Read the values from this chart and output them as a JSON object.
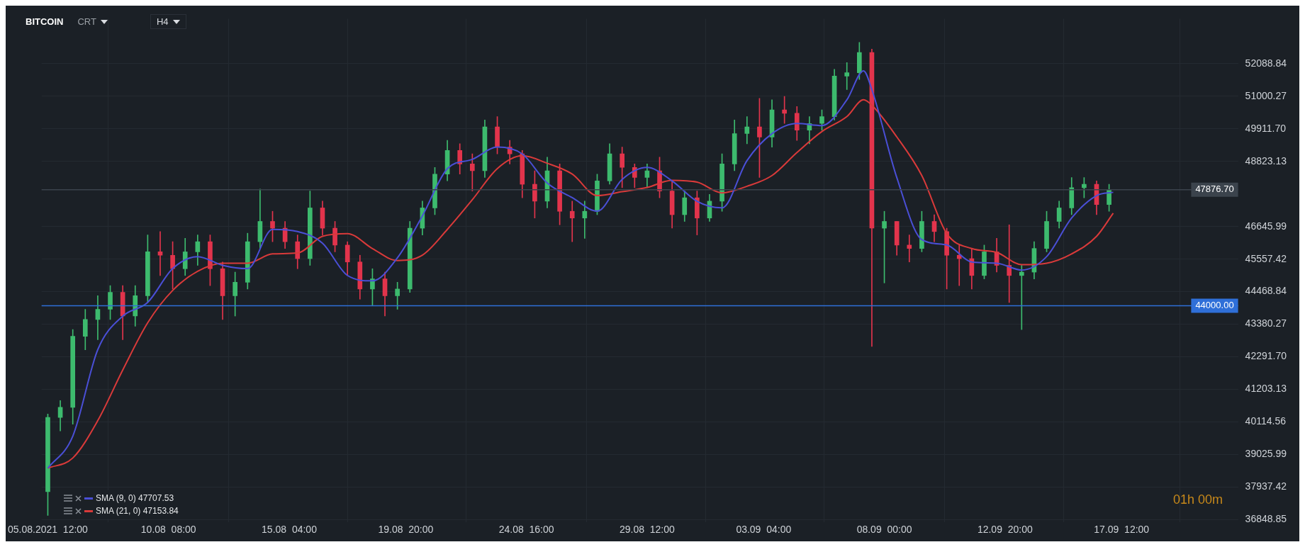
{
  "chart_data": {
    "type": "candlestick",
    "title": "BITCOIN",
    "x": [
      "2021-08-05T12:00",
      "2021-08-06T00:00",
      "2021-08-06T12:00",
      "2021-08-07T00:00",
      "2021-08-07T12:00",
      "2021-08-08T00:00",
      "2021-08-08T12:00",
      "2021-08-09T00:00",
      "2021-08-09T12:00",
      "2021-08-10T00:00",
      "2021-08-10T12:00",
      "2021-08-11T00:00",
      "2021-08-11T12:00",
      "2021-08-12T00:00",
      "2021-08-12T12:00",
      "2021-08-13T00:00",
      "2021-08-13T12:00",
      "2021-08-14T00:00",
      "2021-08-14T12:00",
      "2021-08-15T00:00",
      "2021-08-15T12:00",
      "2021-08-16T00:00",
      "2021-08-16T12:00",
      "2021-08-17T00:00",
      "2021-08-17T12:00",
      "2021-08-18T00:00",
      "2021-08-18T12:00",
      "2021-08-19T00:00",
      "2021-08-19T12:00",
      "2021-08-20T00:00",
      "2021-08-20T12:00",
      "2021-08-21T00:00",
      "2021-08-21T12:00",
      "2021-08-22T00:00",
      "2021-08-22T12:00",
      "2021-08-23T00:00",
      "2021-08-23T12:00",
      "2021-08-24T00:00",
      "2021-08-24T12:00",
      "2021-08-25T00:00",
      "2021-08-25T12:00",
      "2021-08-26T00:00",
      "2021-08-26T12:00",
      "2021-08-27T00:00",
      "2021-08-27T12:00",
      "2021-08-28T00:00",
      "2021-08-28T12:00",
      "2021-08-29T00:00",
      "2021-08-29T12:00",
      "2021-08-30T00:00",
      "2021-08-30T12:00",
      "2021-08-31T00:00",
      "2021-08-31T12:00",
      "2021-09-01T00:00",
      "2021-09-01T12:00",
      "2021-09-02T00:00",
      "2021-09-02T12:00",
      "2021-09-03T00:00",
      "2021-09-03T12:00",
      "2021-09-04T00:00",
      "2021-09-04T12:00",
      "2021-09-05T00:00",
      "2021-09-05T12:00",
      "2021-09-06T00:00",
      "2021-09-06T12:00",
      "2021-09-07T00:00",
      "2021-09-07T12:00",
      "2021-09-08T00:00",
      "2021-09-08T12:00",
      "2021-09-09T00:00",
      "2021-09-09T12:00",
      "2021-09-10T00:00",
      "2021-09-10T12:00",
      "2021-09-11T00:00",
      "2021-09-11T12:00",
      "2021-09-12T00:00",
      "2021-09-12T12:00",
      "2021-09-13T00:00",
      "2021-09-13T12:00",
      "2021-09-14T00:00",
      "2021-09-14T12:00",
      "2021-09-15T00:00",
      "2021-09-15T12:00",
      "2021-09-16T00:00",
      "2021-09-16T12:00",
      "2021-09-17T00:00"
    ],
    "ohlc": [
      [
        37782,
        40380,
        36992,
        40266
      ],
      [
        40266,
        40832,
        39814,
        40605
      ],
      [
        40605,
        43202,
        40040,
        42976
      ],
      [
        42976,
        43880,
        42525,
        43541
      ],
      [
        43541,
        44331,
        42864,
        43880
      ],
      [
        43880,
        44670,
        43541,
        44444
      ],
      [
        44444,
        44670,
        42864,
        43654
      ],
      [
        43654,
        44670,
        43315,
        44331
      ],
      [
        44331,
        46364,
        44106,
        45799
      ],
      [
        45799,
        46477,
        45009,
        45686
      ],
      [
        45686,
        46138,
        44557,
        45235
      ],
      [
        45235,
        46251,
        45009,
        45799
      ],
      [
        45799,
        46364,
        45348,
        46138
      ],
      [
        46138,
        46364,
        44670,
        45235
      ],
      [
        45235,
        45461,
        43541,
        44331
      ],
      [
        44331,
        45122,
        43654,
        44783
      ],
      [
        44783,
        46421,
        44557,
        46138
      ],
      [
        46138,
        47900,
        45912,
        46816
      ],
      [
        46816,
        47154,
        46138,
        46590
      ],
      [
        46590,
        46816,
        45912,
        46138
      ],
      [
        46138,
        46364,
        45235,
        45573
      ],
      [
        45573,
        47832,
        45348,
        47267
      ],
      [
        47267,
        47493,
        46364,
        46590
      ],
      [
        46590,
        46816,
        45799,
        46025
      ],
      [
        46025,
        46138,
        45009,
        45461
      ],
      [
        45461,
        45686,
        44218,
        44557
      ],
      [
        44557,
        45235,
        43993,
        44896
      ],
      [
        44896,
        45122,
        43654,
        44331
      ],
      [
        44331,
        44783,
        43880,
        44557
      ],
      [
        44557,
        46816,
        44444,
        46590
      ],
      [
        46590,
        47493,
        46364,
        47267
      ],
      [
        47267,
        48622,
        47041,
        48396
      ],
      [
        48396,
        49525,
        48171,
        49187
      ],
      [
        49187,
        49413,
        48396,
        48735
      ],
      [
        48735,
        49074,
        47832,
        48509
      ],
      [
        48509,
        50203,
        48284,
        49977
      ],
      [
        49977,
        50316,
        49074,
        49300
      ],
      [
        49300,
        49525,
        48735,
        49074
      ],
      [
        49074,
        49187,
        47606,
        48058
      ],
      [
        48058,
        48509,
        46929,
        47493
      ],
      [
        47493,
        48961,
        47267,
        48509
      ],
      [
        48509,
        48735,
        46703,
        47154
      ],
      [
        47154,
        47493,
        46138,
        46929
      ],
      [
        46929,
        47493,
        46251,
        47154
      ],
      [
        47154,
        48396,
        47041,
        48171
      ],
      [
        48171,
        49413,
        48058,
        49074
      ],
      [
        49074,
        49300,
        47945,
        48622
      ],
      [
        48622,
        48735,
        47945,
        48284
      ],
      [
        48284,
        48735,
        47945,
        48509
      ],
      [
        48509,
        48961,
        47606,
        47832
      ],
      [
        47832,
        48171,
        46590,
        47041
      ],
      [
        47041,
        47832,
        46816,
        47606
      ],
      [
        47606,
        47832,
        46364,
        46929
      ],
      [
        46929,
        47719,
        46816,
        47493
      ],
      [
        47493,
        49074,
        47154,
        48735
      ],
      [
        48735,
        50203,
        48509,
        49751
      ],
      [
        49751,
        50316,
        49413,
        49977
      ],
      [
        49977,
        50926,
        48284,
        49638
      ],
      [
        49638,
        50880,
        49300,
        50542
      ],
      [
        50542,
        50993,
        50090,
        50429
      ],
      [
        50429,
        50654,
        49525,
        49864
      ],
      [
        49864,
        50316,
        49413,
        50090
      ],
      [
        50090,
        50542,
        49864,
        50316
      ],
      [
        50316,
        51897,
        50203,
        51671
      ],
      [
        51671,
        52123,
        51219,
        51784
      ],
      [
        51784,
        52800,
        51558,
        52461
      ],
      [
        52461,
        52574,
        42638,
        46590
      ],
      [
        46590,
        47154,
        44760,
        46816
      ],
      [
        46816,
        46816,
        45686,
        46025
      ],
      [
        46025,
        46364,
        45461,
        45912
      ],
      [
        45912,
        47154,
        45799,
        46816
      ],
      [
        46816,
        47041,
        46138,
        46477
      ],
      [
        46477,
        46590,
        44557,
        45686
      ],
      [
        45686,
        46025,
        44670,
        45573
      ],
      [
        45573,
        45912,
        44557,
        45009
      ],
      [
        45009,
        46025,
        44896,
        45799
      ],
      [
        45799,
        46251,
        45122,
        45348
      ],
      [
        45348,
        46703,
        44106,
        45009
      ],
      [
        45009,
        45348,
        43202,
        45122
      ],
      [
        45122,
        46138,
        44896,
        45912
      ],
      [
        45912,
        47154,
        45799,
        46816
      ],
      [
        46816,
        47493,
        46590,
        47267
      ],
      [
        47267,
        48284,
        47041,
        47945
      ],
      [
        47945,
        48284,
        47606,
        48058
      ],
      [
        48058,
        48171,
        47041,
        47380
      ],
      [
        47380,
        48058,
        47154,
        47876.7
      ]
    ],
    "colors": [
      "#3dbb6e",
      "#3dbb6e",
      "#3dbb6e",
      "#3dbb6e",
      "#3dbb6e",
      "#3dbb6e",
      "#e2344c",
      "#3dbb6e",
      "#3dbb6e",
      "#e2344c",
      "#e2344c",
      "#3dbb6e",
      "#3dbb6e",
      "#e2344c",
      "#e2344c",
      "#3dbb6e",
      "#3dbb6e",
      "#3dbb6e",
      "#e2344c",
      "#e2344c",
      "#e2344c",
      "#3dbb6e",
      "#e2344c",
      "#e2344c",
      "#e2344c",
      "#e2344c",
      "#3dbb6e",
      "#e2344c",
      "#3dbb6e",
      "#3dbb6e",
      "#3dbb6e",
      "#3dbb6e",
      "#3dbb6e",
      "#e2344c",
      "#e2344c",
      "#3dbb6e",
      "#e2344c",
      "#e2344c",
      "#e2344c",
      "#e2344c",
      "#3dbb6e",
      "#e2344c",
      "#e2344c",
      "#3dbb6e",
      "#3dbb6e",
      "#3dbb6e",
      "#e2344c",
      "#e2344c",
      "#3dbb6e",
      "#e2344c",
      "#e2344c",
      "#3dbb6e",
      "#e2344c",
      "#3dbb6e",
      "#3dbb6e",
      "#3dbb6e",
      "#3dbb6e",
      "#e2344c",
      "#3dbb6e",
      "#e2344c",
      "#e2344c",
      "#3dbb6e",
      "#3dbb6e",
      "#3dbb6e",
      "#3dbb6e",
      "#3dbb6e",
      "#e2344c",
      "#3dbb6e",
      "#e2344c",
      "#e2344c",
      "#3dbb6e",
      "#e2344c",
      "#e2344c",
      "#e2344c",
      "#e2344c",
      "#3dbb6e",
      "#e2344c",
      "#e2344c",
      "#3dbb6e",
      "#3dbb6e",
      "#3dbb6e",
      "#3dbb6e",
      "#3dbb6e",
      "#3dbb6e",
      "#e2344c",
      "#3dbb6e"
    ],
    "series": [
      {
        "type": "line",
        "name": "SMA (9, 0) 47707.53",
        "color": "#4a4fd6",
        "x": [
          "2021-08-05T12:00",
          "2021-08-06T12:00",
          "2021-08-07T12:00",
          "2021-08-08T12:00",
          "2021-08-09T12:00",
          "2021-08-10T12:00",
          "2021-08-11T12:00",
          "2021-08-12T12:00",
          "2021-08-13T12:00",
          "2021-08-14T12:00",
          "2021-08-15T12:00",
          "2021-08-16T12:00",
          "2021-08-17T12:00",
          "2021-08-18T12:00",
          "2021-08-19T12:00",
          "2021-08-20T12:00",
          "2021-08-21T12:00",
          "2021-08-22T12:00",
          "2021-08-23T12:00",
          "2021-08-24T12:00",
          "2021-08-25T12:00",
          "2021-08-26T12:00",
          "2021-08-27T12:00",
          "2021-08-28T12:00",
          "2021-08-29T12:00",
          "2021-08-30T12:00",
          "2021-08-31T12:00",
          "2021-09-01T12:00",
          "2021-09-02T12:00",
          "2021-09-03T12:00",
          "2021-09-04T12:00",
          "2021-09-05T12:00",
          "2021-09-06T12:00",
          "2021-09-07T04:00",
          "2021-09-07T12:00",
          "2021-09-08T12:00",
          "2021-09-09T12:00",
          "2021-09-10T12:00",
          "2021-09-11T12:00",
          "2021-09-12T12:00",
          "2021-09-13T12:00",
          "2021-09-14T12:00",
          "2021-09-15T12:00",
          "2021-09-16T12:00",
          "2021-09-17T04:00"
        ],
        "values": [
          38570,
          39640,
          42530,
          43650,
          44110,
          45240,
          45640,
          45350,
          45240,
          46550,
          46480,
          46090,
          45010,
          44830,
          45600,
          47000,
          48580,
          48890,
          49300,
          49070,
          48100,
          47610,
          47160,
          48220,
          48620,
          48170,
          47490,
          47270,
          48850,
          49750,
          50090,
          50020,
          50880,
          51850,
          51220,
          48280,
          46210,
          46030,
          45460,
          45420,
          45190,
          45640,
          46930,
          47680,
          47790
        ]
      },
      {
        "type": "line",
        "name": "SMA (21, 0) 47153.84",
        "color": "#d93a3a",
        "x": [
          "2021-08-05T12:00",
          "2021-08-06T12:00",
          "2021-08-07T12:00",
          "2021-08-08T12:00",
          "2021-08-09T12:00",
          "2021-08-10T12:00",
          "2021-08-11T12:00",
          "2021-08-12T12:00",
          "2021-08-13T12:00",
          "2021-08-14T12:00",
          "2021-08-15T12:00",
          "2021-08-16T12:00",
          "2021-08-17T12:00",
          "2021-08-18T12:00",
          "2021-08-19T12:00",
          "2021-08-20T12:00",
          "2021-08-21T12:00",
          "2021-08-22T12:00",
          "2021-08-23T12:00",
          "2021-08-24T12:00",
          "2021-08-25T12:00",
          "2021-08-26T12:00",
          "2021-08-27T12:00",
          "2021-08-28T12:00",
          "2021-08-29T12:00",
          "2021-08-30T12:00",
          "2021-08-31T12:00",
          "2021-09-01T12:00",
          "2021-09-02T12:00",
          "2021-09-03T12:00",
          "2021-09-04T12:00",
          "2021-09-05T12:00",
          "2021-09-06T12:00",
          "2021-09-07T04:00",
          "2021-09-07T12:00",
          "2021-09-08T12:00",
          "2021-09-09T12:00",
          "2021-09-10T12:00",
          "2021-09-11T12:00",
          "2021-09-12T12:00",
          "2021-09-13T12:00",
          "2021-09-14T12:00",
          "2021-09-15T12:00",
          "2021-09-16T12:00",
          "2021-09-17T04:00"
        ],
        "values": [
          38570,
          38910,
          40160,
          41850,
          43430,
          44510,
          45150,
          45420,
          45420,
          45730,
          45760,
          46320,
          46410,
          45910,
          45510,
          45690,
          46550,
          47540,
          48580,
          49010,
          48760,
          48400,
          47680,
          47810,
          47950,
          48190,
          48130,
          47770,
          47990,
          48350,
          49120,
          49820,
          50320,
          50880,
          50700,
          49640,
          48350,
          46410,
          45910,
          45780,
          45370,
          45420,
          45730,
          46320,
          47090
        ]
      }
    ],
    "xlim": [
      "2021-08-05T06:00",
      "2021-09-22T04:00"
    ],
    "xticks": [
      {
        "value": "2021-08-05T12:00",
        "label": "05.08.2021  12:00"
      },
      {
        "value": "2021-08-10T08:00",
        "label": "10.08  08:00"
      },
      {
        "value": "2021-08-15T04:00",
        "label": "15.08  04:00"
      },
      {
        "value": "2021-08-19T20:00",
        "label": "19.08  20:00"
      },
      {
        "value": "2021-08-24T16:00",
        "label": "24.08  16:00"
      },
      {
        "value": "2021-08-29T12:00",
        "label": "29.08  12:00"
      },
      {
        "value": "2021-09-03T04:00",
        "label": "03.09  04:00"
      },
      {
        "value": "2021-09-08T00:00",
        "label": "08.09  00:00"
      },
      {
        "value": "2021-09-12T20:00",
        "label": "12.09  20:00"
      },
      {
        "value": "2021-09-17T12:00",
        "label": "17.09  12:00"
      }
    ],
    "ylim": [
      36760,
      53590
    ],
    "yticks": [
      36848.85,
      37937.42,
      39025.99,
      40114.56,
      41203.13,
      {
        "value": 42291.7,
        "label": "42291.70"
      },
      43380.27,
      44468.84,
      45557.42,
      46645.99,
      48823.13,
      {
        "value": 49911.7,
        "label": "49911.70"
      },
      51000.27,
      52088.84
    ],
    "ref_lines": [
      {
        "axis": "y",
        "value": 44000,
        "label": "44000.00",
        "color": "#2f6fd8"
      },
      {
        "axis": "y",
        "value": 47876.7,
        "label": "47876.70",
        "color": "#3b434c"
      }
    ],
    "annotations": [
      "CRT",
      "H4",
      "01h 00m"
    ],
    "grid": true,
    "legend": "bottom left",
    "marker": "none",
    "line_style": "solid"
  }
}
